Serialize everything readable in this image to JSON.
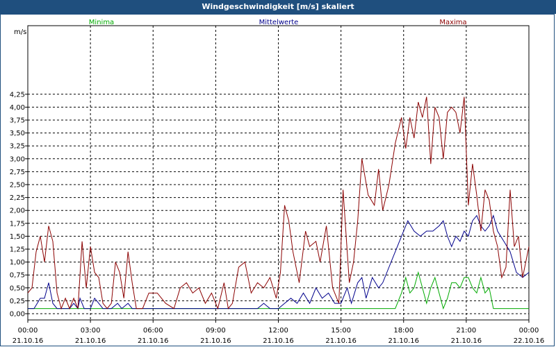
{
  "window": {
    "title": "Windgeschwindigkeit [m/s] skaliert"
  },
  "chart_data": {
    "type": "line",
    "title": "Windgeschwindigkeit [m/s] skaliert",
    "ylabel": "m/s",
    "xlabel": "",
    "ylim": [
      0,
      4.25
    ],
    "yticks": [
      "0,00",
      "0,25",
      "0,50",
      "0,75",
      "1,00",
      "1,25",
      "1,50",
      "1,75",
      "2,00",
      "2,25",
      "2,50",
      "2,75",
      "3,00",
      "3,25",
      "3,50",
      "3,75",
      "4,00",
      "4,25"
    ],
    "x_range_hours": [
      0,
      24
    ],
    "xticks": [
      {
        "time": "00:00",
        "date": "21.10.16"
      },
      {
        "time": "03:00",
        "date": "21.10.16"
      },
      {
        "time": "06:00",
        "date": "21.10.16"
      },
      {
        "time": "09:00",
        "date": "21.10.16"
      },
      {
        "time": "12:00",
        "date": "21.10.16"
      },
      {
        "time": "15:00",
        "date": "21.10.16"
      },
      {
        "time": "18:00",
        "date": "21.10.16"
      },
      {
        "time": "21:00",
        "date": "21.10.16"
      },
      {
        "time": "00:00",
        "date": "22.10.16"
      }
    ],
    "grid": true,
    "legend_position": "top",
    "series": [
      {
        "name": "Minima",
        "color": "#00aa00",
        "points": [
          [
            0,
            0.1
          ],
          [
            17.6,
            0.1
          ],
          [
            17.9,
            0.4
          ],
          [
            18.1,
            0.7
          ],
          [
            18.3,
            0.4
          ],
          [
            18.5,
            0.5
          ],
          [
            18.7,
            0.8
          ],
          [
            18.9,
            0.5
          ],
          [
            19.1,
            0.2
          ],
          [
            19.3,
            0.5
          ],
          [
            19.5,
            0.7
          ],
          [
            19.7,
            0.4
          ],
          [
            19.9,
            0.1
          ],
          [
            20.1,
            0.3
          ],
          [
            20.3,
            0.6
          ],
          [
            20.5,
            0.6
          ],
          [
            20.7,
            0.5
          ],
          [
            20.9,
            0.7
          ],
          [
            21.1,
            0.7
          ],
          [
            21.3,
            0.5
          ],
          [
            21.5,
            0.4
          ],
          [
            21.7,
            0.7
          ],
          [
            21.9,
            0.4
          ],
          [
            22.1,
            0.5
          ],
          [
            22.3,
            0.1
          ],
          [
            24,
            0.1
          ]
        ]
      },
      {
        "name": "Mittelwerte",
        "color": "#00008b",
        "points": [
          [
            0,
            0.1
          ],
          [
            0.3,
            0.1
          ],
          [
            0.6,
            0.3
          ],
          [
            0.8,
            0.3
          ],
          [
            1.0,
            0.6
          ],
          [
            1.2,
            0.2
          ],
          [
            1.4,
            0.1
          ],
          [
            2.0,
            0.1
          ],
          [
            2.2,
            0.2
          ],
          [
            2.4,
            0.1
          ],
          [
            2.5,
            0.3
          ],
          [
            2.7,
            0.1
          ],
          [
            3.0,
            0.1
          ],
          [
            3.2,
            0.3
          ],
          [
            3.4,
            0.2
          ],
          [
            3.6,
            0.1
          ],
          [
            4.0,
            0.1
          ],
          [
            4.3,
            0.2
          ],
          [
            4.5,
            0.1
          ],
          [
            4.8,
            0.2
          ],
          [
            5.0,
            0.1
          ],
          [
            11.0,
            0.1
          ],
          [
            11.3,
            0.2
          ],
          [
            11.6,
            0.1
          ],
          [
            12.0,
            0.1
          ],
          [
            12.3,
            0.2
          ],
          [
            12.6,
            0.3
          ],
          [
            12.9,
            0.2
          ],
          [
            13.2,
            0.4
          ],
          [
            13.5,
            0.2
          ],
          [
            13.8,
            0.5
          ],
          [
            14.1,
            0.3
          ],
          [
            14.4,
            0.4
          ],
          [
            14.7,
            0.2
          ],
          [
            15.0,
            0.2
          ],
          [
            15.3,
            0.5
          ],
          [
            15.5,
            0.2
          ],
          [
            15.8,
            0.6
          ],
          [
            16.0,
            0.7
          ],
          [
            16.2,
            0.3
          ],
          [
            16.5,
            0.7
          ],
          [
            16.8,
            0.5
          ],
          [
            17.0,
            0.6
          ],
          [
            17.3,
            0.9
          ],
          [
            17.6,
            1.2
          ],
          [
            17.9,
            1.5
          ],
          [
            18.2,
            1.8
          ],
          [
            18.5,
            1.6
          ],
          [
            18.8,
            1.5
          ],
          [
            19.1,
            1.6
          ],
          [
            19.4,
            1.6
          ],
          [
            19.7,
            1.7
          ],
          [
            19.9,
            1.8
          ],
          [
            20.1,
            1.5
          ],
          [
            20.3,
            1.3
          ],
          [
            20.5,
            1.5
          ],
          [
            20.7,
            1.4
          ],
          [
            20.9,
            1.6
          ],
          [
            21.1,
            1.5
          ],
          [
            21.3,
            1.8
          ],
          [
            21.5,
            1.9
          ],
          [
            21.7,
            1.7
          ],
          [
            21.9,
            1.6
          ],
          [
            22.1,
            1.7
          ],
          [
            22.3,
            1.9
          ],
          [
            22.5,
            1.6
          ],
          [
            22.8,
            1.4
          ],
          [
            23.1,
            1.2
          ],
          [
            23.4,
            0.8
          ],
          [
            23.7,
            0.7
          ],
          [
            24,
            0.8
          ]
        ]
      },
      {
        "name": "Maxima",
        "color": "#8b0000",
        "points": [
          [
            0,
            0.4
          ],
          [
            0.2,
            0.5
          ],
          [
            0.4,
            1.2
          ],
          [
            0.6,
            1.5
          ],
          [
            0.8,
            1.0
          ],
          [
            1.0,
            1.7
          ],
          [
            1.2,
            1.4
          ],
          [
            1.4,
            0.4
          ],
          [
            1.6,
            0.1
          ],
          [
            1.8,
            0.3
          ],
          [
            2.0,
            0.1
          ],
          [
            2.2,
            0.3
          ],
          [
            2.4,
            0.1
          ],
          [
            2.6,
            1.4
          ],
          [
            2.8,
            0.5
          ],
          [
            3.0,
            1.3
          ],
          [
            3.2,
            0.8
          ],
          [
            3.4,
            0.7
          ],
          [
            3.6,
            0.2
          ],
          [
            3.8,
            0.1
          ],
          [
            4.0,
            0.2
          ],
          [
            4.2,
            1.0
          ],
          [
            4.4,
            0.8
          ],
          [
            4.6,
            0.3
          ],
          [
            4.8,
            1.2
          ],
          [
            5.0,
            0.6
          ],
          [
            5.2,
            0.1
          ],
          [
            5.5,
            0.1
          ],
          [
            5.8,
            0.4
          ],
          [
            6.2,
            0.4
          ],
          [
            6.6,
            0.2
          ],
          [
            7.0,
            0.1
          ],
          [
            7.3,
            0.5
          ],
          [
            7.6,
            0.6
          ],
          [
            7.9,
            0.4
          ],
          [
            8.2,
            0.5
          ],
          [
            8.5,
            0.2
          ],
          [
            8.8,
            0.4
          ],
          [
            9.1,
            0.1
          ],
          [
            9.4,
            0.6
          ],
          [
            9.6,
            0.1
          ],
          [
            9.8,
            0.2
          ],
          [
            10.1,
            0.9
          ],
          [
            10.4,
            1.0
          ],
          [
            10.7,
            0.4
          ],
          [
            11.0,
            0.6
          ],
          [
            11.3,
            0.5
          ],
          [
            11.6,
            0.7
          ],
          [
            11.9,
            0.3
          ],
          [
            12.1,
            0.8
          ],
          [
            12.3,
            2.1
          ],
          [
            12.5,
            1.8
          ],
          [
            12.7,
            1.2
          ],
          [
            13.0,
            0.6
          ],
          [
            13.3,
            1.6
          ],
          [
            13.5,
            1.3
          ],
          [
            13.8,
            1.4
          ],
          [
            14.0,
            1.0
          ],
          [
            14.3,
            1.7
          ],
          [
            14.6,
            0.5
          ],
          [
            14.9,
            0.2
          ],
          [
            15.1,
            2.4
          ],
          [
            15.4,
            0.6
          ],
          [
            15.6,
            1.0
          ],
          [
            15.8,
            1.8
          ],
          [
            16.0,
            3.0
          ],
          [
            16.3,
            2.3
          ],
          [
            16.6,
            2.1
          ],
          [
            16.8,
            2.8
          ],
          [
            17.0,
            2.0
          ],
          [
            17.3,
            2.5
          ],
          [
            17.6,
            3.3
          ],
          [
            17.9,
            3.8
          ],
          [
            18.1,
            3.2
          ],
          [
            18.3,
            3.8
          ],
          [
            18.5,
            3.4
          ],
          [
            18.7,
            4.1
          ],
          [
            18.9,
            3.8
          ],
          [
            19.1,
            4.2
          ],
          [
            19.3,
            2.9
          ],
          [
            19.5,
            4.0
          ],
          [
            19.7,
            3.8
          ],
          [
            19.9,
            3.0
          ],
          [
            20.1,
            3.9
          ],
          [
            20.3,
            4.0
          ],
          [
            20.5,
            3.9
          ],
          [
            20.7,
            3.5
          ],
          [
            20.9,
            4.2
          ],
          [
            21.1,
            2.1
          ],
          [
            21.3,
            2.9
          ],
          [
            21.5,
            2.3
          ],
          [
            21.7,
            1.6
          ],
          [
            21.9,
            2.4
          ],
          [
            22.1,
            2.2
          ],
          [
            22.3,
            1.6
          ],
          [
            22.5,
            1.3
          ],
          [
            22.7,
            0.7
          ],
          [
            22.9,
            0.9
          ],
          [
            23.1,
            2.4
          ],
          [
            23.3,
            1.3
          ],
          [
            23.5,
            1.5
          ],
          [
            23.7,
            0.7
          ],
          [
            24,
            1.3
          ]
        ]
      }
    ]
  }
}
